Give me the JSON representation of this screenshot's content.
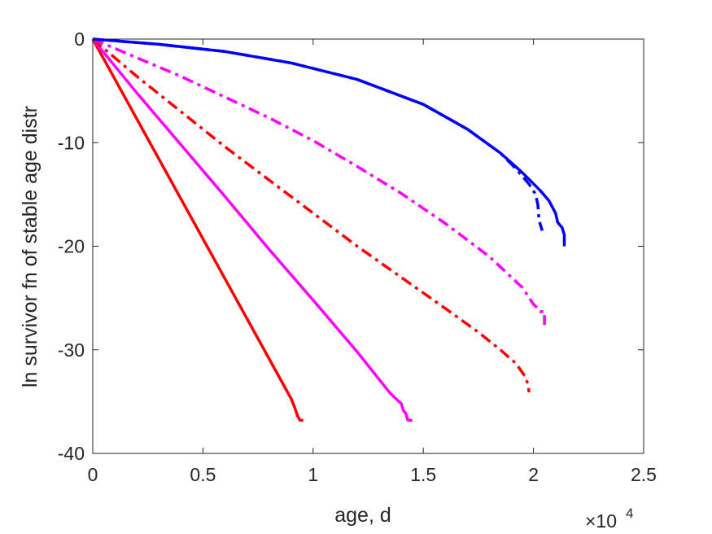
{
  "chart_data": {
    "type": "line",
    "xlabel": "age, d",
    "ylabel": "ln survivor fn of stable age distr",
    "x_exponent_label": "×10",
    "x_exponent_power": "4",
    "xlim": [
      0,
      25000
    ],
    "ylim": [
      -40,
      0
    ],
    "x_ticks": [
      0,
      5000,
      10000,
      15000,
      20000,
      25000
    ],
    "x_tick_labels": [
      "0",
      "0.5",
      "1",
      "1.5",
      "2",
      "2.5"
    ],
    "y_ticks": [
      0,
      -10,
      -20,
      -30,
      -40
    ],
    "y_tick_labels": [
      "0",
      "-10",
      "-20",
      "-30",
      "-40"
    ],
    "grid": false,
    "series": [
      {
        "color": "#ff0000",
        "style": "solid",
        "points": [
          [
            0,
            0
          ],
          [
            9000,
            -34.7
          ],
          [
            9150,
            -35.5
          ],
          [
            9300,
            -36.4
          ],
          [
            9400,
            -36.8
          ],
          [
            9550,
            -36.8
          ]
        ]
      },
      {
        "color": "#ff00ff",
        "style": "solid",
        "points": [
          [
            0,
            0
          ],
          [
            2000,
            -5.2
          ],
          [
            4000,
            -10.2
          ],
          [
            6000,
            -15.2
          ],
          [
            8000,
            -20.3
          ],
          [
            10000,
            -25.2
          ],
          [
            12000,
            -30.2
          ],
          [
            13500,
            -34.2
          ],
          [
            14000,
            -35.2
          ],
          [
            14100,
            -35.9
          ],
          [
            14200,
            -36.1
          ],
          [
            14300,
            -36.8
          ],
          [
            14500,
            -36.8
          ]
        ]
      },
      {
        "color": "#ff0000",
        "style": "dashdot",
        "points": [
          [
            0,
            0
          ],
          [
            2000,
            -3.6
          ],
          [
            4000,
            -7.0
          ],
          [
            6000,
            -10.4
          ],
          [
            8000,
            -13.6
          ],
          [
            10000,
            -16.8
          ],
          [
            12000,
            -20.0
          ],
          [
            14000,
            -23.0
          ],
          [
            16000,
            -26.0
          ],
          [
            17500,
            -28.3
          ],
          [
            18500,
            -30.0
          ],
          [
            19200,
            -31.3
          ],
          [
            19600,
            -32.5
          ],
          [
            19750,
            -33.3
          ],
          [
            19800,
            -34.1
          ]
        ]
      },
      {
        "color": "#ff00ff",
        "style": "dashdot",
        "points": [
          [
            0,
            0
          ],
          [
            2000,
            -1.8
          ],
          [
            4000,
            -3.6
          ],
          [
            6000,
            -5.6
          ],
          [
            8000,
            -7.6
          ],
          [
            10000,
            -9.8
          ],
          [
            12000,
            -12.3
          ],
          [
            14000,
            -14.9
          ],
          [
            16000,
            -17.8
          ],
          [
            18000,
            -21.0
          ],
          [
            19500,
            -24.0
          ],
          [
            20000,
            -25.6
          ],
          [
            20200,
            -26.0
          ],
          [
            20300,
            -26.3
          ],
          [
            20500,
            -26.3
          ],
          [
            20500,
            -27.6
          ]
        ]
      },
      {
        "color": "#0000ff",
        "style": "dashdot",
        "points": [
          [
            0,
            0
          ],
          [
            3000,
            -0.5
          ],
          [
            6000,
            -1.2
          ],
          [
            9000,
            -2.3
          ],
          [
            12000,
            -3.9
          ],
          [
            15000,
            -6.3
          ],
          [
            17000,
            -8.7
          ],
          [
            18500,
            -11.0
          ],
          [
            19200,
            -12.5
          ],
          [
            19800,
            -14.0
          ],
          [
            20100,
            -15.0
          ],
          [
            20200,
            -16.0
          ],
          [
            20250,
            -17.5
          ],
          [
            20400,
            -18.5
          ]
        ]
      },
      {
        "color": "#0000ff",
        "style": "solid",
        "points": [
          [
            0,
            0
          ],
          [
            3000,
            -0.5
          ],
          [
            6000,
            -1.2
          ],
          [
            9000,
            -2.3
          ],
          [
            12000,
            -3.9
          ],
          [
            15000,
            -6.3
          ],
          [
            17000,
            -8.7
          ],
          [
            18500,
            -11.0
          ],
          [
            19500,
            -12.9
          ],
          [
            20300,
            -14.6
          ],
          [
            20700,
            -15.6
          ],
          [
            21000,
            -16.8
          ],
          [
            21100,
            -17.7
          ],
          [
            21300,
            -18.2
          ],
          [
            21400,
            -18.9
          ],
          [
            21400,
            -20.0
          ]
        ]
      }
    ]
  }
}
